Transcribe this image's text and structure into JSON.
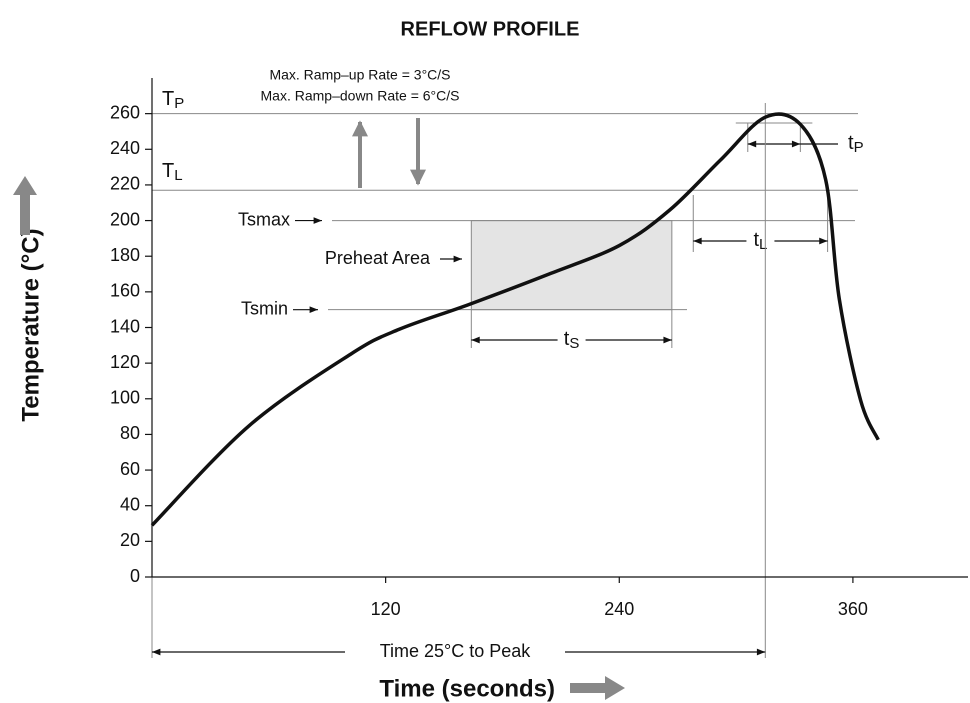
{
  "chart_data": {
    "type": "line",
    "title": "REFLOW PROFILE",
    "x_label": "Time (seconds)",
    "y_label": "Temperature (°C)",
    "xlim": [
      0,
      415
    ],
    "ylim": [
      0,
      280
    ],
    "xticks": [
      120,
      240,
      360
    ],
    "yticks": [
      0,
      20,
      40,
      60,
      80,
      100,
      120,
      140,
      160,
      180,
      200,
      220,
      240,
      260
    ],
    "x": [
      0,
      50,
      102,
      127,
      163,
      204,
      240,
      266,
      292,
      315,
      333,
      346,
      353,
      364,
      373
    ],
    "series": [
      {
        "color": "#111111",
        "values": [
          29,
          85,
          125,
          139,
          153,
          170,
          186,
          206,
          234,
          258,
          254,
          223,
          156,
          99,
          77
        ]
      }
    ],
    "ramp_notes": [
      "Max. Ramp–up Rate = 3°C/S",
      "Max. Ramp–down Rate = 6°C/S"
    ],
    "reference_lines": [
      {
        "text": "T",
        "sub": "P",
        "value": 260
      },
      {
        "text": "T",
        "sub": "L",
        "value": 217
      },
      {
        "text": "Tsmax",
        "value": 200
      },
      {
        "text": "Tsmin",
        "value": 150
      }
    ],
    "preheat": {
      "label": "Preheat Area",
      "start": 164,
      "end": 267,
      "low": 150,
      "high": 200
    },
    "intervals": [
      {
        "text": "t",
        "sub": "S",
        "start": 164,
        "end": 267
      },
      {
        "text": "t",
        "sub": "L",
        "start": 278,
        "end": 347
      },
      {
        "text": "t",
        "sub": "P",
        "start": 306,
        "end": 333
      }
    ],
    "peak_span": {
      "label": "Time 25°C to Peak",
      "start": 0,
      "end": 315
    }
  }
}
